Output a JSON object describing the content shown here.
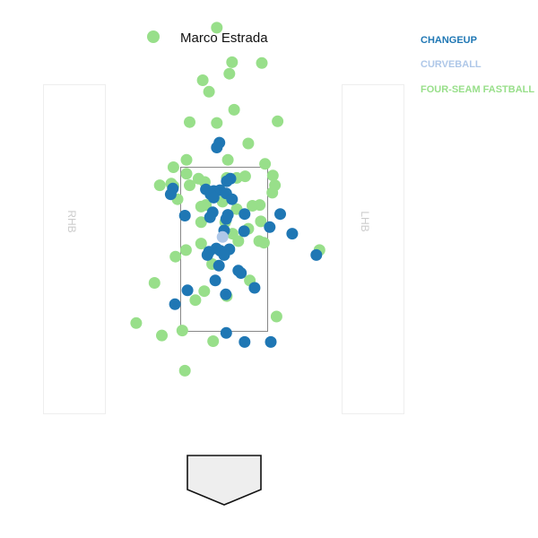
{
  "legend": {
    "pitcher": "Marco Estrada",
    "pitcher_color": "#98df8a"
  },
  "pitch_types": [
    {
      "name": "CHANGEUP",
      "color": "#1f77b4"
    },
    {
      "name": "CURVEBALL",
      "color": "#aec7e8"
    },
    {
      "name": "FOUR-SEAM FASTBALL",
      "color": "#98df8a"
    }
  ],
  "batter_box_labels": {
    "left": "RHB",
    "right": "LHB"
  },
  "chart_data": {
    "type": "scatter",
    "title": "",
    "xlabel": "",
    "ylabel": "",
    "strike_zone": {
      "x": [
        -0.83,
        0.83
      ],
      "z": [
        1.5,
        3.5
      ]
    },
    "series": [
      {
        "name": "FOUR-SEAM FASTBALL",
        "points": [
          [
            -0.14,
            5.2
          ],
          [
            0.15,
            4.78
          ],
          [
            0.72,
            4.77
          ],
          [
            0.1,
            4.64
          ],
          [
            -0.41,
            4.56
          ],
          [
            -0.29,
            4.42
          ],
          [
            0.19,
            4.2
          ],
          [
            -0.66,
            4.05
          ],
          [
            -0.14,
            4.04
          ],
          [
            1.02,
            4.06
          ],
          [
            0.46,
            3.79
          ],
          [
            0.07,
            3.59
          ],
          [
            -0.72,
            3.59
          ],
          [
            0.78,
            3.54
          ],
          [
            -0.97,
            3.5
          ],
          [
            -0.72,
            3.42
          ],
          [
            0.93,
            3.4
          ],
          [
            0.24,
            3.37
          ],
          [
            0.4,
            3.39
          ],
          [
            0.05,
            3.37
          ],
          [
            -0.49,
            3.36
          ],
          [
            -1.01,
            3.3
          ],
          [
            -1.23,
            3.28
          ],
          [
            -0.97,
            3.27
          ],
          [
            -0.66,
            3.28
          ],
          [
            -0.37,
            3.32
          ],
          [
            0.97,
            3.28
          ],
          [
            0.92,
            3.19
          ],
          [
            -0.89,
            3.11
          ],
          [
            -0.03,
            3.08
          ],
          [
            -0.44,
            3.02
          ],
          [
            -0.35,
            3.04
          ],
          [
            0.54,
            3.03
          ],
          [
            0.68,
            3.04
          ],
          [
            0.24,
            2.99
          ],
          [
            -0.44,
            2.83
          ],
          [
            0.02,
            2.83
          ],
          [
            0.7,
            2.84
          ],
          [
            0.46,
            2.75
          ],
          [
            0.16,
            2.69
          ],
          [
            0.67,
            2.6
          ],
          [
            0.76,
            2.58
          ],
          [
            -0.44,
            2.57
          ],
          [
            0.27,
            2.6
          ],
          [
            1.82,
            2.49
          ],
          [
            -0.73,
            2.49
          ],
          [
            -0.93,
            2.41
          ],
          [
            -0.23,
            2.32
          ],
          [
            0.49,
            2.12
          ],
          [
            -1.33,
            2.09
          ],
          [
            -0.38,
            1.99
          ],
          [
            0.05,
            1.93
          ],
          [
            -0.55,
            1.88
          ],
          [
            1.0,
            1.68
          ],
          [
            -1.68,
            1.6
          ],
          [
            -0.8,
            1.51
          ],
          [
            -1.19,
            1.45
          ],
          [
            -0.21,
            1.38
          ],
          [
            -0.75,
            1.02
          ]
        ]
      },
      {
        "name": "CHANGEUP",
        "points": [
          [
            -0.09,
            3.8
          ],
          [
            -0.14,
            3.74
          ],
          [
            0.12,
            3.36
          ],
          [
            0.05,
            3.33
          ],
          [
            -0.98,
            3.24
          ],
          [
            -0.35,
            3.23
          ],
          [
            -0.08,
            3.22
          ],
          [
            -0.2,
            3.21
          ],
          [
            -0.26,
            3.17
          ],
          [
            0.04,
            3.18
          ],
          [
            -1.02,
            3.17
          ],
          [
            -0.2,
            3.13
          ],
          [
            0.15,
            3.11
          ],
          [
            -0.22,
            2.95
          ],
          [
            0.07,
            2.92
          ],
          [
            0.39,
            2.93
          ],
          [
            1.07,
            2.93
          ],
          [
            -0.75,
            2.91
          ],
          [
            -0.27,
            2.89
          ],
          [
            0.04,
            2.87
          ],
          [
            0.87,
            2.77
          ],
          [
            0.38,
            2.72
          ],
          [
            0.0,
            2.73
          ],
          [
            1.3,
            2.69
          ],
          [
            -0.15,
            2.51
          ],
          [
            -0.07,
            2.48
          ],
          [
            -0.29,
            2.47
          ],
          [
            0.1,
            2.5
          ],
          [
            -0.32,
            2.43
          ],
          [
            0.0,
            2.43
          ],
          [
            1.76,
            2.43
          ],
          [
            -0.1,
            2.3
          ],
          [
            0.27,
            2.24
          ],
          [
            0.32,
            2.21
          ],
          [
            -0.17,
            2.12
          ],
          [
            0.58,
            2.03
          ],
          [
            -0.7,
            2.0
          ],
          [
            0.03,
            1.95
          ],
          [
            -0.94,
            1.83
          ],
          [
            0.04,
            1.48
          ],
          [
            0.39,
            1.37
          ],
          [
            0.89,
            1.37
          ]
        ]
      },
      {
        "name": "CURVEBALL",
        "points": [
          [
            -0.03,
            2.65
          ]
        ]
      }
    ]
  }
}
